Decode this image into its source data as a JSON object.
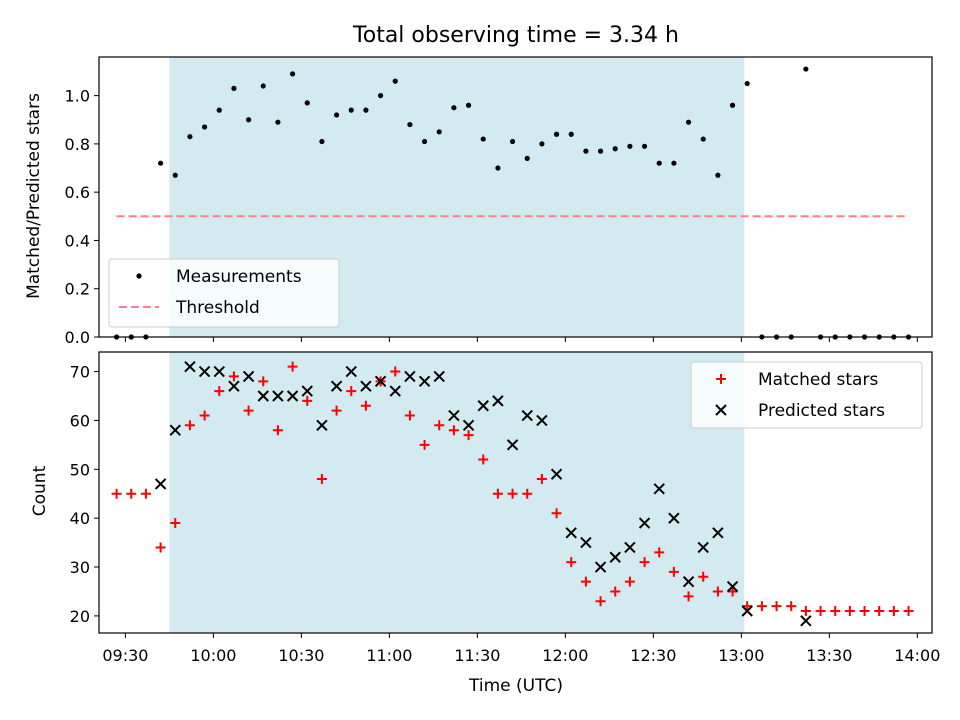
{
  "chart_data": [
    {
      "type": "scatter",
      "title": "Total observing time = 3.34 h",
      "xlabel": "",
      "ylabel": "Matched/Predicted stars",
      "ylim": [
        0,
        1.16
      ],
      "xlim": [
        "09:21",
        "14:05"
      ],
      "yticks": [
        "0.0",
        "0.2",
        "0.4",
        "0.6",
        "0.8",
        "1.0"
      ],
      "shaded_interval": [
        "09:45",
        "13:01"
      ],
      "shade_color": "#d3eaf0",
      "legend_position": "lower-left",
      "series": [
        {
          "name": "Measurements",
          "marker": "dot",
          "color": "#000000",
          "points": [
            [
              "09:27",
              0.0
            ],
            [
              "09:32",
              0.0
            ],
            [
              "09:37",
              0.0
            ],
            [
              "09:42",
              0.72
            ],
            [
              "09:47",
              0.67
            ],
            [
              "09:52",
              0.83
            ],
            [
              "09:57",
              0.87
            ],
            [
              "10:02",
              0.94
            ],
            [
              "10:07",
              1.03
            ],
            [
              "10:12",
              0.9
            ],
            [
              "10:17",
              1.04
            ],
            [
              "10:22",
              0.89
            ],
            [
              "10:27",
              1.09
            ],
            [
              "10:32",
              0.97
            ],
            [
              "10:37",
              0.81
            ],
            [
              "10:42",
              0.92
            ],
            [
              "10:47",
              0.94
            ],
            [
              "10:52",
              0.94
            ],
            [
              "10:57",
              1.0
            ],
            [
              "11:02",
              1.06
            ],
            [
              "11:07",
              0.88
            ],
            [
              "11:12",
              0.81
            ],
            [
              "11:17",
              0.85
            ],
            [
              "11:22",
              0.95
            ],
            [
              "11:27",
              0.96
            ],
            [
              "11:32",
              0.82
            ],
            [
              "11:37",
              0.7
            ],
            [
              "11:42",
              0.81
            ],
            [
              "11:47",
              0.74
            ],
            [
              "11:52",
              0.8
            ],
            [
              "11:57",
              0.84
            ],
            [
              "12:02",
              0.84
            ],
            [
              "12:07",
              0.77
            ],
            [
              "12:12",
              0.77
            ],
            [
              "12:17",
              0.78
            ],
            [
              "12:22",
              0.79
            ],
            [
              "12:27",
              0.79
            ],
            [
              "12:32",
              0.72
            ],
            [
              "12:37",
              0.72
            ],
            [
              "12:42",
              0.89
            ],
            [
              "12:47",
              0.82
            ],
            [
              "12:52",
              0.67
            ],
            [
              "12:57",
              0.96
            ],
            [
              "13:02",
              1.05
            ],
            [
              "13:07",
              0.0
            ],
            [
              "13:12",
              0.0
            ],
            [
              "13:17",
              0.0
            ],
            [
              "13:22",
              1.11
            ],
            [
              "13:27",
              0.0
            ],
            [
              "13:32",
              0.0
            ],
            [
              "13:37",
              0.0
            ],
            [
              "13:42",
              0.0
            ],
            [
              "13:47",
              0.0
            ],
            [
              "13:52",
              0.0
            ],
            [
              "13:57",
              0.0
            ]
          ]
        },
        {
          "name": "Threshold",
          "marker": "dashed-line",
          "color": "#ff8080",
          "points": [
            [
              "09:27",
              0.5
            ],
            [
              "13:57",
              0.5
            ]
          ]
        }
      ]
    },
    {
      "type": "scatter",
      "title": "",
      "xlabel": "Time (UTC)",
      "ylabel": "Count",
      "ylim": [
        16.5,
        74
      ],
      "xlim": [
        "09:21",
        "14:05"
      ],
      "xticks": [
        "09:30",
        "10:00",
        "10:30",
        "11:00",
        "11:30",
        "12:00",
        "12:30",
        "13:00",
        "13:30",
        "14:00"
      ],
      "yticks": [
        "20",
        "30",
        "40",
        "50",
        "60",
        "70"
      ],
      "shaded_interval": [
        "09:45",
        "13:01"
      ],
      "shade_color": "#d3eaf0",
      "legend_position": "upper-right",
      "series": [
        {
          "name": "Matched stars",
          "marker": "plus",
          "color": "#ff0000",
          "points": [
            [
              "09:27",
              45
            ],
            [
              "09:32",
              45
            ],
            [
              "09:37",
              45
            ],
            [
              "09:42",
              34
            ],
            [
              "09:47",
              39
            ],
            [
              "09:52",
              59
            ],
            [
              "09:57",
              61
            ],
            [
              "10:02",
              66
            ],
            [
              "10:07",
              69
            ],
            [
              "10:12",
              62
            ],
            [
              "10:17",
              68
            ],
            [
              "10:22",
              58
            ],
            [
              "10:27",
              71
            ],
            [
              "10:32",
              64
            ],
            [
              "10:37",
              48
            ],
            [
              "10:42",
              62
            ],
            [
              "10:47",
              66
            ],
            [
              "10:52",
              63
            ],
            [
              "10:57",
              68
            ],
            [
              "11:02",
              70
            ],
            [
              "11:07",
              61
            ],
            [
              "11:12",
              55
            ],
            [
              "11:17",
              59
            ],
            [
              "11:22",
              58
            ],
            [
              "11:27",
              57
            ],
            [
              "11:32",
              52
            ],
            [
              "11:37",
              45
            ],
            [
              "11:42",
              45
            ],
            [
              "11:47",
              45
            ],
            [
              "11:52",
              48
            ],
            [
              "11:57",
              41
            ],
            [
              "12:02",
              31
            ],
            [
              "12:07",
              27
            ],
            [
              "12:12",
              23
            ],
            [
              "12:17",
              25
            ],
            [
              "12:22",
              27
            ],
            [
              "12:27",
              31
            ],
            [
              "12:32",
              33
            ],
            [
              "12:37",
              29
            ],
            [
              "12:42",
              24
            ],
            [
              "12:47",
              28
            ],
            [
              "12:52",
              25
            ],
            [
              "12:57",
              25
            ],
            [
              "13:02",
              22
            ],
            [
              "13:07",
              22
            ],
            [
              "13:12",
              22
            ],
            [
              "13:17",
              22
            ],
            [
              "13:22",
              21
            ],
            [
              "13:27",
              21
            ],
            [
              "13:32",
              21
            ],
            [
              "13:37",
              21
            ],
            [
              "13:42",
              21
            ],
            [
              "13:47",
              21
            ],
            [
              "13:52",
              21
            ],
            [
              "13:57",
              21
            ]
          ]
        },
        {
          "name": "Predicted stars",
          "marker": "x",
          "color": "#000000",
          "points": [
            [
              "09:42",
              47
            ],
            [
              "09:47",
              58
            ],
            [
              "09:52",
              71
            ],
            [
              "09:57",
              70
            ],
            [
              "10:02",
              70
            ],
            [
              "10:07",
              67
            ],
            [
              "10:12",
              69
            ],
            [
              "10:17",
              65
            ],
            [
              "10:22",
              65
            ],
            [
              "10:27",
              65
            ],
            [
              "10:32",
              66
            ],
            [
              "10:37",
              59
            ],
            [
              "10:42",
              67
            ],
            [
              "10:47",
              70
            ],
            [
              "10:52",
              67
            ],
            [
              "10:57",
              68
            ],
            [
              "11:02",
              66
            ],
            [
              "11:07",
              69
            ],
            [
              "11:12",
              68
            ],
            [
              "11:17",
              69
            ],
            [
              "11:22",
              61
            ],
            [
              "11:27",
              59
            ],
            [
              "11:32",
              63
            ],
            [
              "11:37",
              64
            ],
            [
              "11:42",
              55
            ],
            [
              "11:47",
              61
            ],
            [
              "11:52",
              60
            ],
            [
              "11:57",
              49
            ],
            [
              "12:02",
              37
            ],
            [
              "12:07",
              35
            ],
            [
              "12:12",
              30
            ],
            [
              "12:17",
              32
            ],
            [
              "12:22",
              34
            ],
            [
              "12:27",
              39
            ],
            [
              "12:32",
              46
            ],
            [
              "12:37",
              40
            ],
            [
              "12:42",
              27
            ],
            [
              "12:47",
              34
            ],
            [
              "12:52",
              37
            ],
            [
              "12:57",
              26
            ],
            [
              "13:02",
              21
            ],
            [
              "13:22",
              19
            ]
          ]
        }
      ]
    }
  ]
}
